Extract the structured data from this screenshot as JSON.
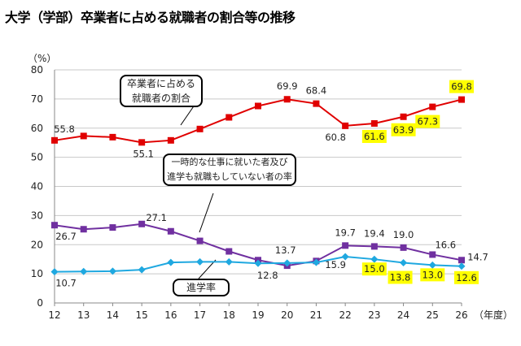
{
  "title": "大学（学部）卒業者に占める就職者の割合等の推移",
  "chart_data": {
    "type": "line",
    "title": "大学（学部）卒業者に占める就職者の割合等の推移",
    "ylabel": "（%）",
    "xlabel": "（年度）",
    "ylim": [
      0,
      80
    ],
    "yticks": [
      0,
      10,
      20,
      30,
      40,
      50,
      60,
      70,
      80
    ],
    "categories": [
      "12",
      "13",
      "14",
      "15",
      "16",
      "17",
      "18",
      "19",
      "20",
      "21",
      "22",
      "23",
      "24",
      "25",
      "26"
    ],
    "grid": true,
    "highlight_color": "#ffff00",
    "series": [
      {
        "name": "卒業者に占める就職者の割合",
        "color": "#e00000",
        "marker": "square",
        "values": [
          55.8,
          57.3,
          56.9,
          55.1,
          55.8,
          59.7,
          63.7,
          67.6,
          69.9,
          68.4,
          60.8,
          61.6,
          63.9,
          67.3,
          69.8
        ],
        "labels": {
          "0": "55.8",
          "3": "55.1",
          "8": "69.9",
          "9": "68.4",
          "10": "60.8",
          "11": "61.6",
          "12": "63.9",
          "13": "67.3",
          "14": "69.8"
        },
        "highlighted": [
          11,
          12,
          13,
          14
        ]
      },
      {
        "name": "一時的な仕事に就いた者及び進学も就職もしていない者の率",
        "color": "#7030a0",
        "marker": "square",
        "values": [
          26.7,
          25.3,
          25.9,
          27.1,
          24.6,
          21.3,
          17.7,
          14.7,
          12.8,
          14.4,
          19.7,
          19.4,
          19.0,
          16.6,
          14.7
        ],
        "labels": {
          "0": "26.7",
          "3": "27.1",
          "8": "12.8",
          "10": "19.7",
          "11": "19.4",
          "12": "19.0",
          "13": "16.6",
          "14": "14.7"
        },
        "highlighted": []
      },
      {
        "name": "進学率",
        "color": "#1fa8e0",
        "marker": "diamond",
        "values": [
          10.7,
          10.8,
          10.9,
          11.4,
          13.9,
          14.1,
          14.1,
          13.6,
          13.7,
          13.9,
          15.9,
          15.0,
          13.8,
          13.0,
          12.6
        ],
        "labels": {
          "0": "10.7",
          "8": "13.7",
          "10": "15.9",
          "11": "15.0",
          "12": "13.8",
          "13": "13.0",
          "14": "12.6"
        },
        "highlighted": [
          11,
          12,
          13,
          14
        ]
      }
    ],
    "callouts": [
      {
        "lines": [
          "卒業者に占める",
          "就職者の割合"
        ]
      },
      {
        "lines": [
          "一時的な仕事に就いた者及び",
          "進学も就職もしていない者の率"
        ]
      },
      {
        "lines": [
          "進学率"
        ]
      }
    ]
  }
}
